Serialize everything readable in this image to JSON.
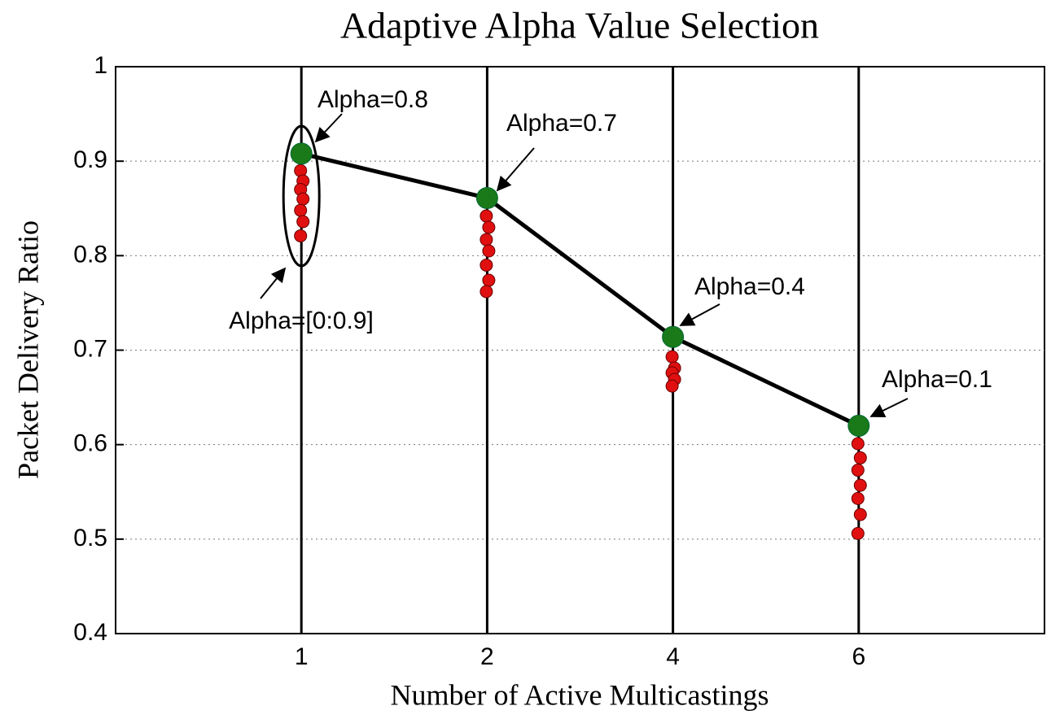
{
  "chart_data": {
    "type": "line",
    "title": "Adaptive Alpha Value Selection",
    "x_label": "Number of Active Multicastings",
    "y_label": "Packet Delivery Ratio",
    "categories": [
      "1",
      "2",
      "4",
      "6"
    ],
    "series": [
      {
        "color": "#1a7a1a",
        "values": [
          0.908,
          0.861,
          0.714,
          0.62
        ]
      }
    ],
    "points": {
      "color": "#e01010",
      "values": [
        [
          0.89,
          0.879,
          0.87,
          0.86,
          0.848,
          0.836,
          0.821
        ],
        [
          0.842,
          0.83,
          0.817,
          0.805,
          0.79,
          0.774,
          0.762
        ],
        [
          0.693,
          0.681,
          0.676,
          0.669,
          0.662
        ],
        [
          0.601,
          0.586,
          0.573,
          0.557,
          0.543,
          0.526,
          0.506
        ]
      ]
    },
    "annotations": [
      "Alpha=0.8",
      "Alpha=0.7",
      "Alpha=0.4",
      "Alpha=0.1",
      "Alpha=[0:0.9]"
    ],
    "ylim": [
      0.4,
      1
    ],
    "yticks": [
      0.4,
      0.5,
      0.6,
      0.7,
      0.8,
      0.9,
      1
    ],
    "grid": true
  }
}
